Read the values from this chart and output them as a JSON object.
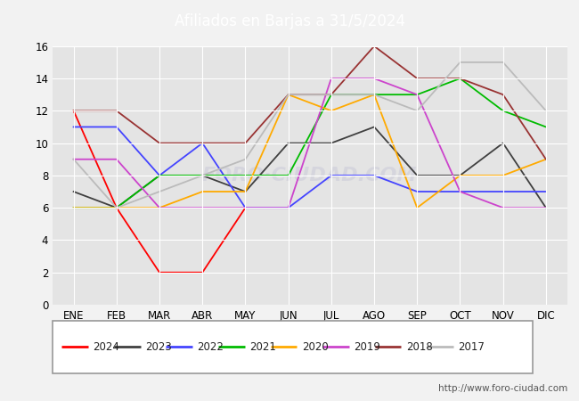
{
  "title": "Afiliados en Barjas a 31/5/2024",
  "header_color": "#4d7ebf",
  "months": [
    "ENE",
    "FEB",
    "MAR",
    "ABR",
    "MAY",
    "JUN",
    "JUL",
    "AGO",
    "SEP",
    "OCT",
    "NOV",
    "DIC"
  ],
  "series": {
    "2024": {
      "color": "#ff0000",
      "data": [
        12,
        6,
        2,
        2,
        6,
        null,
        null,
        null,
        null,
        null,
        null,
        null
      ]
    },
    "2023": {
      "color": "#404040",
      "data": [
        7,
        6,
        8,
        8,
        7,
        10,
        10,
        11,
        8,
        8,
        10,
        6
      ]
    },
    "2022": {
      "color": "#4444ff",
      "data": [
        11,
        11,
        8,
        10,
        6,
        6,
        8,
        8,
        7,
        7,
        7,
        7
      ]
    },
    "2021": {
      "color": "#00bb00",
      "data": [
        6,
        6,
        8,
        8,
        8,
        8,
        13,
        13,
        13,
        14,
        12,
        11
      ]
    },
    "2020": {
      "color": "#ffaa00",
      "data": [
        6,
        6,
        6,
        7,
        7,
        13,
        12,
        13,
        6,
        8,
        8,
        9
      ]
    },
    "2019": {
      "color": "#cc44cc",
      "data": [
        9,
        9,
        6,
        6,
        6,
        6,
        14,
        14,
        13,
        7,
        6,
        6
      ]
    },
    "2018": {
      "color": "#993333",
      "data": [
        12,
        12,
        10,
        10,
        10,
        13,
        13,
        16,
        14,
        14,
        13,
        9
      ]
    },
    "2017": {
      "color": "#bbbbbb",
      "data": [
        9,
        6,
        7,
        8,
        9,
        13,
        13,
        13,
        12,
        15,
        15,
        12
      ]
    }
  },
  "ylim": [
    0,
    16
  ],
  "yticks": [
    0,
    2,
    4,
    6,
    8,
    10,
    12,
    14,
    16
  ],
  "legend_years": [
    "2024",
    "2023",
    "2022",
    "2021",
    "2020",
    "2019",
    "2018",
    "2017"
  ],
  "url_text": "http://www.foro-ciudad.com",
  "bg_color": "#f2f2f2",
  "plot_bg_color": "#e4e4e4",
  "grid_color": "#ffffff"
}
